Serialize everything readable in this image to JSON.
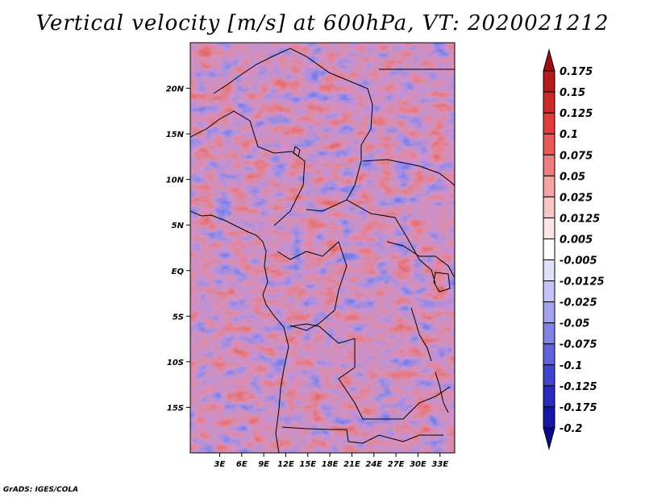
{
  "title": "Vertical velocity [m/s] at 600hPa, VT: 2020021212",
  "credit": "GrADS: IGES/COLA",
  "map": {
    "lon_range": [
      -1,
      35
    ],
    "lat_range": [
      -20,
      25
    ],
    "x_ticks": [
      {
        "value": 3,
        "label": "3E"
      },
      {
        "value": 6,
        "label": "6E"
      },
      {
        "value": 9,
        "label": "9E"
      },
      {
        "value": 12,
        "label": "12E"
      },
      {
        "value": 15,
        "label": "15E"
      },
      {
        "value": 18,
        "label": "18E"
      },
      {
        "value": 21,
        "label": "21E"
      },
      {
        "value": 24,
        "label": "24E"
      },
      {
        "value": 27,
        "label": "27E"
      },
      {
        "value": 30,
        "label": "30E"
      },
      {
        "value": 33,
        "label": "33E"
      }
    ],
    "y_ticks": [
      {
        "value": 20,
        "label": "20N"
      },
      {
        "value": 15,
        "label": "15N"
      },
      {
        "value": 10,
        "label": "10N"
      },
      {
        "value": 5,
        "label": "5N"
      },
      {
        "value": 0,
        "label": "EQ"
      },
      {
        "value": -5,
        "label": "5S"
      },
      {
        "value": -10,
        "label": "10S"
      },
      {
        "value": -15,
        "label": "15S"
      }
    ]
  },
  "colorbar": {
    "levels": [
      "0.175",
      "0.15",
      "0.125",
      "0.1",
      "0.075",
      "0.05",
      "0.025",
      "0.0125",
      "0.005",
      "-0.005",
      "-0.0125",
      "-0.025",
      "-0.05",
      "-0.075",
      "-0.1",
      "-0.125",
      "-0.175",
      "-0.2"
    ],
    "colors": [
      "#a00d14",
      "#b71b1f",
      "#cd2b2b",
      "#e03c3c",
      "#ea5a5a",
      "#f07e7e",
      "#f5a3a3",
      "#fac5c5",
      "#fde5e5",
      "#ffffff",
      "#e1e1fa",
      "#c4c4f5",
      "#a3a3ef",
      "#8282e8",
      "#6262de",
      "#4343d2",
      "#2a2ac2",
      "#1616a9",
      "#0a0a8c"
    ]
  }
}
